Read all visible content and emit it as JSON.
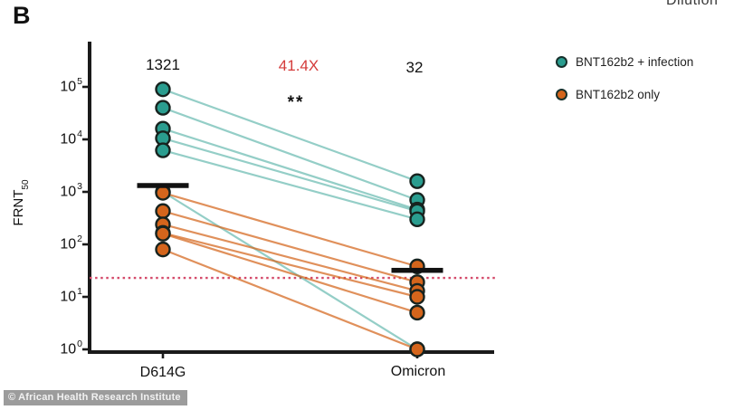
{
  "panel_label": "B",
  "clipped_header_text": "Dilution",
  "watermark_text": "© African Health Research Institute",
  "legend": {
    "items": [
      {
        "label": "BNT162b2 + infection",
        "color": "#2a9d8f"
      },
      {
        "label": "BNT162b2 only",
        "color": "#d4651c"
      }
    ]
  },
  "annotations": {
    "left_gmt_label": "1321",
    "fold_change_label": "41.4X",
    "right_gmt_label": "32",
    "significance_label": "**"
  },
  "colors": {
    "teal": "#2a9d8f",
    "orange": "#d4651c",
    "fold_change_red": "#d43b3a",
    "threshold_red": "#d44a6a",
    "axis_black": "#1a1a1a",
    "gmt_bar_black": "#111111",
    "watermark_bg": "#9c9c9c"
  },
  "chart_data": {
    "type": "line",
    "subtype": "paired-slope-scatter",
    "title": "",
    "categories": [
      "D614G",
      "Omicron"
    ],
    "ylabel": {
      "text": "FRNT",
      "sub": "50"
    },
    "y_axis": {
      "scale": "log10",
      "ylim": [
        1,
        100000
      ],
      "ticks": [
        {
          "base": "10",
          "exp": "5",
          "value": 100000
        },
        {
          "base": "10",
          "exp": "4",
          "value": 10000
        },
        {
          "base": "10",
          "exp": "3",
          "value": 1000
        },
        {
          "base": "10",
          "exp": "2",
          "value": 100
        },
        {
          "base": "10",
          "exp": "1",
          "value": 10
        },
        {
          "base": "10",
          "exp": "0",
          "value": 1
        }
      ]
    },
    "series": [
      {
        "name": "BNT162b2 + infection",
        "color": "#2a9d8f",
        "line_opacity": 0.5,
        "pairs": [
          [
            90000,
            1600
          ],
          [
            40000,
            700
          ],
          [
            16000,
            460
          ],
          [
            10500,
            430
          ],
          [
            6200,
            300
          ],
          [
            1000,
            1
          ]
        ]
      },
      {
        "name": "BNT162b2 only",
        "color": "#d4651c",
        "line_opacity": 0.72,
        "pairs": [
          [
            960,
            38
          ],
          [
            430,
            19
          ],
          [
            240,
            13
          ],
          [
            165,
            10
          ],
          [
            160,
            5
          ],
          [
            80,
            1
          ]
        ]
      }
    ],
    "gmt_bars": [
      {
        "category": "D614G",
        "value": 1321,
        "label": "1321"
      },
      {
        "category": "Omicron",
        "value": 32,
        "label": "32"
      }
    ],
    "fold_change": "41.4X",
    "significance": "**",
    "threshold_line": {
      "value": 23,
      "style": "dotted"
    },
    "legend_position": "right",
    "grid": false
  }
}
